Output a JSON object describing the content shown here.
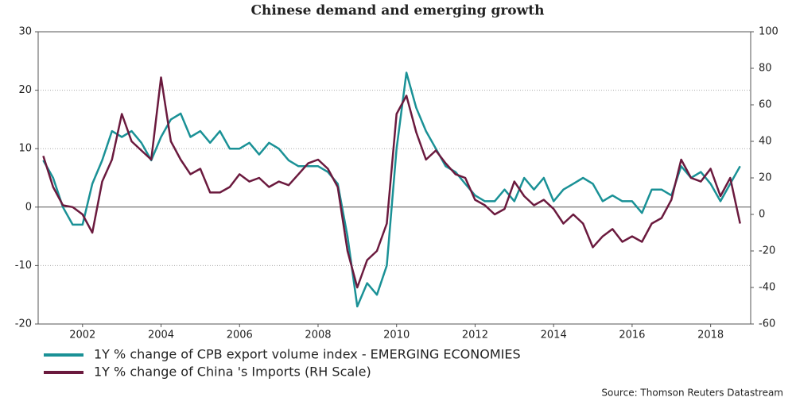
{
  "chart_data": {
    "type": "line",
    "title": "Chinese demand and emerging growth",
    "source": "Source: Thomson Reuters Datastream",
    "x": [
      2001.0,
      2001.25,
      2001.5,
      2001.75,
      2002.0,
      2002.25,
      2002.5,
      2002.75,
      2003.0,
      2003.25,
      2003.5,
      2003.75,
      2004.0,
      2004.25,
      2004.5,
      2004.75,
      2005.0,
      2005.25,
      2005.5,
      2005.75,
      2006.0,
      2006.25,
      2006.5,
      2006.75,
      2007.0,
      2007.25,
      2007.5,
      2007.75,
      2008.0,
      2008.25,
      2008.5,
      2008.75,
      2009.0,
      2009.25,
      2009.5,
      2009.75,
      2010.0,
      2010.25,
      2010.5,
      2010.75,
      2011.0,
      2011.25,
      2011.5,
      2011.75,
      2012.0,
      2012.25,
      2012.5,
      2012.75,
      2013.0,
      2013.25,
      2013.5,
      2013.75,
      2014.0,
      2014.25,
      2014.5,
      2014.75,
      2015.0,
      2015.25,
      2015.5,
      2015.75,
      2016.0,
      2016.25,
      2016.5,
      2016.75,
      2017.0,
      2017.25,
      2017.5,
      2017.75,
      2018.0,
      2018.25,
      2018.5,
      2018.75
    ],
    "series": [
      {
        "name": "1Y % change of CPB export volume index - EMERGING ECONOMIES",
        "color": "#1a9196",
        "axis": "y",
        "values": [
          8,
          5,
          0,
          -3,
          -3,
          4,
          8,
          13,
          12,
          13,
          11,
          8,
          12,
          15,
          16,
          12,
          13,
          11,
          13,
          10,
          10,
          11,
          9,
          11,
          10,
          8,
          7,
          7,
          7,
          6,
          4,
          -5,
          -17,
          -13,
          -15,
          -10,
          10,
          23,
          17,
          13,
          10,
          7,
          6,
          4,
          2,
          1,
          1,
          3,
          1,
          5,
          3,
          5,
          1,
          3,
          4,
          5,
          4,
          1,
          2,
          1,
          1,
          -1,
          3,
          3,
          2,
          7,
          5,
          6,
          4,
          1,
          4,
          7
        ]
      },
      {
        "name": "1Y % change of China 's Imports (RH Scale)",
        "color": "#6b1a3e",
        "axis": "y2",
        "values": [
          32,
          15,
          5,
          4,
          0,
          -10,
          18,
          30,
          55,
          40,
          35,
          30,
          75,
          40,
          30,
          22,
          25,
          12,
          12,
          15,
          22,
          18,
          20,
          15,
          18,
          16,
          22,
          28,
          30,
          25,
          15,
          -20,
          -40,
          -25,
          -20,
          -5,
          55,
          65,
          45,
          30,
          35,
          28,
          22,
          20,
          8,
          5,
          0,
          3,
          18,
          10,
          5,
          8,
          3,
          -5,
          0,
          -5,
          -18,
          -12,
          -8,
          -15,
          -12,
          -15,
          -5,
          -2,
          8,
          30,
          20,
          18,
          25,
          10,
          20,
          -5
        ]
      }
    ],
    "xlim": [
      2000.87,
      2019.02
    ],
    "xticks": [
      2002,
      2004,
      2006,
      2008,
      2010,
      2012,
      2014,
      2016,
      2018
    ],
    "ylim": [
      -20,
      30
    ],
    "yticks": [
      -20,
      -10,
      0,
      10,
      20,
      30
    ],
    "y2lim": [
      -60,
      100
    ],
    "y2ticks": [
      -60,
      -40,
      -20,
      0,
      20,
      40,
      60,
      80,
      100
    ],
    "grid": true
  }
}
